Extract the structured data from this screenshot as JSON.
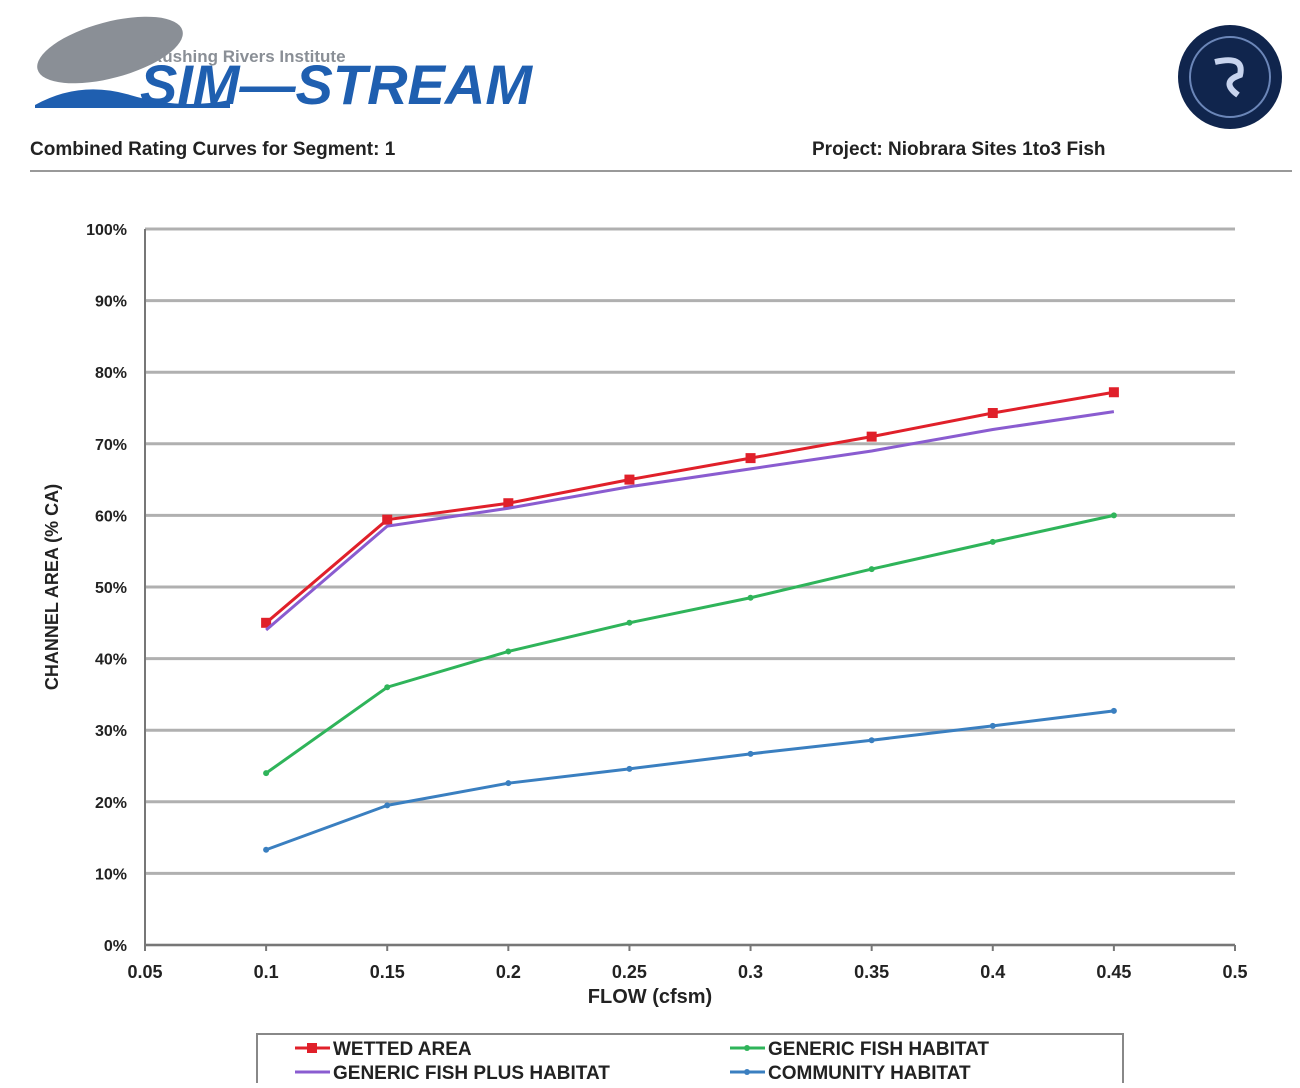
{
  "header": {
    "institute": "Rushing Rivers Institute",
    "logo": "SIM—STREAM",
    "left": "Combined Rating Curves for Segment: 1",
    "right": "Project: Niobrara Sites 1to3 Fish"
  },
  "chart_data": {
    "type": "line",
    "xlabel": "FLOW (cfsm)",
    "ylabel": "CHANNEL AREA (% CA)",
    "x": [
      0.1,
      0.15,
      0.2,
      0.25,
      0.3,
      0.35,
      0.4,
      0.45
    ],
    "xlim": [
      0.05,
      0.5
    ],
    "xticks": [
      0.05,
      0.1,
      0.15,
      0.2,
      0.25,
      0.3,
      0.35,
      0.4,
      0.45,
      0.5
    ],
    "ylim": [
      0,
      100
    ],
    "yticks": [
      {
        "value": 0,
        "label": "0%"
      },
      {
        "value": 10,
        "label": "10%"
      },
      {
        "value": 20,
        "label": "20%"
      },
      {
        "value": 30,
        "label": "30%"
      },
      {
        "value": 40,
        "label": "40%"
      },
      {
        "value": 50,
        "label": "50%"
      },
      {
        "value": 60,
        "label": "60%"
      },
      {
        "value": 70,
        "label": "70%"
      },
      {
        "value": 80,
        "label": "80%"
      },
      {
        "value": 90,
        "label": "90%"
      },
      {
        "value": 100,
        "label": "100%"
      }
    ],
    "grid": true,
    "legend": "bottom",
    "series": [
      {
        "name": "WETTED AREA",
        "color": "#e0202a",
        "marker": "square",
        "values": [
          45,
          59.4,
          61.7,
          65,
          68,
          71,
          74.3,
          77.2
        ]
      },
      {
        "name": "GENERIC FISH HABITAT",
        "color": "#2fb45a",
        "marker": "small",
        "values": [
          24,
          36,
          41,
          45,
          48.5,
          52.5,
          56.3,
          60
        ]
      },
      {
        "name": "GENERIC FISH PLUS HABITAT",
        "color": "#8a5cd0",
        "marker": "none",
        "values": [
          44,
          58.5,
          61,
          64,
          66.5,
          69,
          72,
          74.5
        ]
      },
      {
        "name": "COMMUNITY HABITAT",
        "color": "#3a7fc0",
        "marker": "small",
        "values": [
          13.3,
          19.5,
          22.6,
          24.6,
          26.7,
          28.6,
          30.6,
          32.7
        ]
      }
    ]
  }
}
